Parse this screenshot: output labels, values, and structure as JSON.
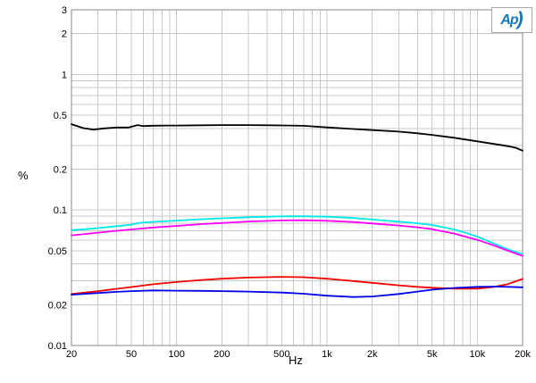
{
  "logo": {
    "text": "Ap",
    "arc": ")"
  },
  "chart_data": {
    "type": "line",
    "title": "",
    "xlabel": "Hz",
    "ylabel": "%",
    "x_scale": "log",
    "y_scale": "log",
    "xlim": [
      20,
      20000
    ],
    "ylim": [
      0.01,
      3
    ],
    "grid": "log-minor-on",
    "legend": "none",
    "frame_color": "#8a8a8a",
    "grid_color": "#c9c9c9",
    "x_ticks": [
      {
        "v": 20,
        "label": "20"
      },
      {
        "v": 50,
        "label": "50"
      },
      {
        "v": 100,
        "label": "100"
      },
      {
        "v": 200,
        "label": "200"
      },
      {
        "v": 500,
        "label": "500"
      },
      {
        "v": 1000,
        "label": "1k"
      },
      {
        "v": 2000,
        "label": "2k"
      },
      {
        "v": 5000,
        "label": "5k"
      },
      {
        "v": 10000,
        "label": "10k"
      },
      {
        "v": 20000,
        "label": "20k"
      }
    ],
    "y_ticks": [
      {
        "v": 3,
        "label": "3"
      },
      {
        "v": 2,
        "label": "2"
      },
      {
        "v": 1,
        "label": "1"
      },
      {
        "v": 0.5,
        "label": "0.5"
      },
      {
        "v": 0.2,
        "label": "0.2"
      },
      {
        "v": 0.1,
        "label": "0.1"
      },
      {
        "v": 0.05,
        "label": "0.05"
      },
      {
        "v": 0.02,
        "label": "0.02"
      },
      {
        "v": 0.01,
        "label": "0.01"
      }
    ],
    "series": [
      {
        "name": "black-trace",
        "color": "#000000",
        "points": [
          [
            20,
            0.43
          ],
          [
            24,
            0.402
          ],
          [
            28,
            0.392
          ],
          [
            33,
            0.4
          ],
          [
            40,
            0.406
          ],
          [
            48,
            0.406
          ],
          [
            55,
            0.423
          ],
          [
            60,
            0.416
          ],
          [
            70,
            0.419
          ],
          [
            85,
            0.42
          ],
          [
            100,
            0.42
          ],
          [
            150,
            0.422
          ],
          [
            200,
            0.423
          ],
          [
            300,
            0.423
          ],
          [
            400,
            0.422
          ],
          [
            500,
            0.421
          ],
          [
            700,
            0.418
          ],
          [
            1000,
            0.407
          ],
          [
            1500,
            0.396
          ],
          [
            2000,
            0.389
          ],
          [
            3000,
            0.379
          ],
          [
            4000,
            0.368
          ],
          [
            5000,
            0.358
          ],
          [
            7000,
            0.341
          ],
          [
            10000,
            0.321
          ],
          [
            13000,
            0.307
          ],
          [
            16000,
            0.296
          ],
          [
            18000,
            0.288
          ],
          [
            20000,
            0.274
          ]
        ]
      },
      {
        "name": "cyan-trace",
        "color": "#00E8E8",
        "points": [
          [
            20,
            0.071
          ],
          [
            25,
            0.0722
          ],
          [
            30,
            0.0735
          ],
          [
            40,
            0.076
          ],
          [
            50,
            0.078
          ],
          [
            57,
            0.0805
          ],
          [
            70,
            0.0818
          ],
          [
            100,
            0.0835
          ],
          [
            150,
            0.0855
          ],
          [
            200,
            0.0868
          ],
          [
            300,
            0.0885
          ],
          [
            500,
            0.0898
          ],
          [
            700,
            0.09
          ],
          [
            1000,
            0.0893
          ],
          [
            1500,
            0.0872
          ],
          [
            2000,
            0.085
          ],
          [
            3000,
            0.082
          ],
          [
            4000,
            0.0798
          ],
          [
            5000,
            0.0775
          ],
          [
            7000,
            0.0718
          ],
          [
            8000,
            0.069
          ],
          [
            10000,
            0.0635
          ],
          [
            13000,
            0.0563
          ],
          [
            16000,
            0.0512
          ],
          [
            20000,
            0.0472
          ]
        ]
      },
      {
        "name": "magenta-trace",
        "color": "#FF00FF",
        "points": [
          [
            20,
            0.065
          ],
          [
            30,
            0.068
          ],
          [
            40,
            0.0702
          ],
          [
            50,
            0.0718
          ],
          [
            70,
            0.0743
          ],
          [
            100,
            0.0763
          ],
          [
            150,
            0.0788
          ],
          [
            200,
            0.0802
          ],
          [
            300,
            0.0822
          ],
          [
            500,
            0.0838
          ],
          [
            700,
            0.084
          ],
          [
            1000,
            0.0832
          ],
          [
            1500,
            0.0815
          ],
          [
            2000,
            0.0795
          ],
          [
            3000,
            0.0768
          ],
          [
            4000,
            0.0745
          ],
          [
            5000,
            0.0722
          ],
          [
            7000,
            0.067
          ],
          [
            10000,
            0.0602
          ],
          [
            13000,
            0.0545
          ],
          [
            16000,
            0.05
          ],
          [
            20000,
            0.0458
          ]
        ]
      },
      {
        "name": "red-trace",
        "color": "#F40000",
        "points": [
          [
            20,
            0.024
          ],
          [
            30,
            0.0252
          ],
          [
            40,
            0.0262
          ],
          [
            50,
            0.027
          ],
          [
            70,
            0.0283
          ],
          [
            100,
            0.0294
          ],
          [
            150,
            0.0305
          ],
          [
            200,
            0.0311
          ],
          [
            300,
            0.0317
          ],
          [
            500,
            0.0321
          ],
          [
            700,
            0.0319
          ],
          [
            1000,
            0.0311
          ],
          [
            1500,
            0.0299
          ],
          [
            2000,
            0.029
          ],
          [
            3000,
            0.0278
          ],
          [
            4000,
            0.0271
          ],
          [
            5000,
            0.0267
          ],
          [
            7000,
            0.0263
          ],
          [
            10000,
            0.0263
          ],
          [
            13000,
            0.0271
          ],
          [
            16000,
            0.0284
          ],
          [
            20000,
            0.031
          ]
        ]
      },
      {
        "name": "blue-trace",
        "color": "#0000E8",
        "points": [
          [
            20,
            0.0237
          ],
          [
            30,
            0.0244
          ],
          [
            40,
            0.0249
          ],
          [
            50,
            0.0252
          ],
          [
            70,
            0.0255
          ],
          [
            100,
            0.0254
          ],
          [
            150,
            0.0253
          ],
          [
            200,
            0.0252
          ],
          [
            300,
            0.025
          ],
          [
            500,
            0.0246
          ],
          [
            700,
            0.0241
          ],
          [
            1000,
            0.0233
          ],
          [
            1500,
            0.0228
          ],
          [
            2000,
            0.023
          ],
          [
            3000,
            0.024
          ],
          [
            4000,
            0.025
          ],
          [
            5000,
            0.0258
          ],
          [
            7000,
            0.0266
          ],
          [
            10000,
            0.0271
          ],
          [
            13000,
            0.0272
          ],
          [
            16000,
            0.0271
          ],
          [
            20000,
            0.0269
          ]
        ]
      }
    ]
  }
}
